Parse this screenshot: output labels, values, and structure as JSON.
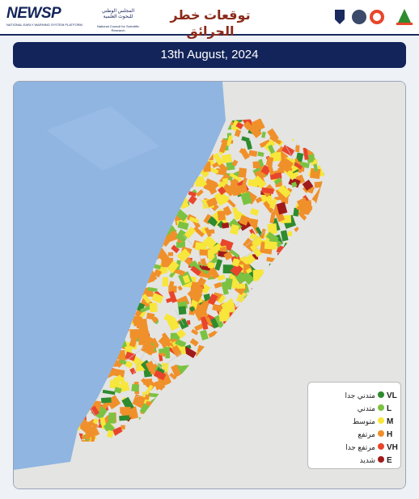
{
  "header": {
    "newsp_logo": "NEWSP",
    "newsp_tagline": "NATIONAL EARLY WARNING SYSTEM PLATFORM",
    "cnrs_ar": "المجلس الوطني للبحوث العلمية",
    "cnrs_en": "National Council for Scientific Research",
    "title": "توقعات خطر الحرائق"
  },
  "date": "13th August, 2024",
  "legend": [
    {
      "code": "VL",
      "label": "متدني جدا",
      "color": "#2e8b2e"
    },
    {
      "code": "L",
      "label": "متدني",
      "color": "#7cc242"
    },
    {
      "code": "M",
      "label": "متوسط",
      "color": "#f7e63b"
    },
    {
      "code": "H",
      "label": "مرتفع",
      "color": "#f0902a"
    },
    {
      "code": "VH",
      "label": "مرتفع جدا",
      "color": "#e8452c"
    },
    {
      "code": "E",
      "label": "شديد",
      "color": "#a11a1a"
    }
  ]
}
